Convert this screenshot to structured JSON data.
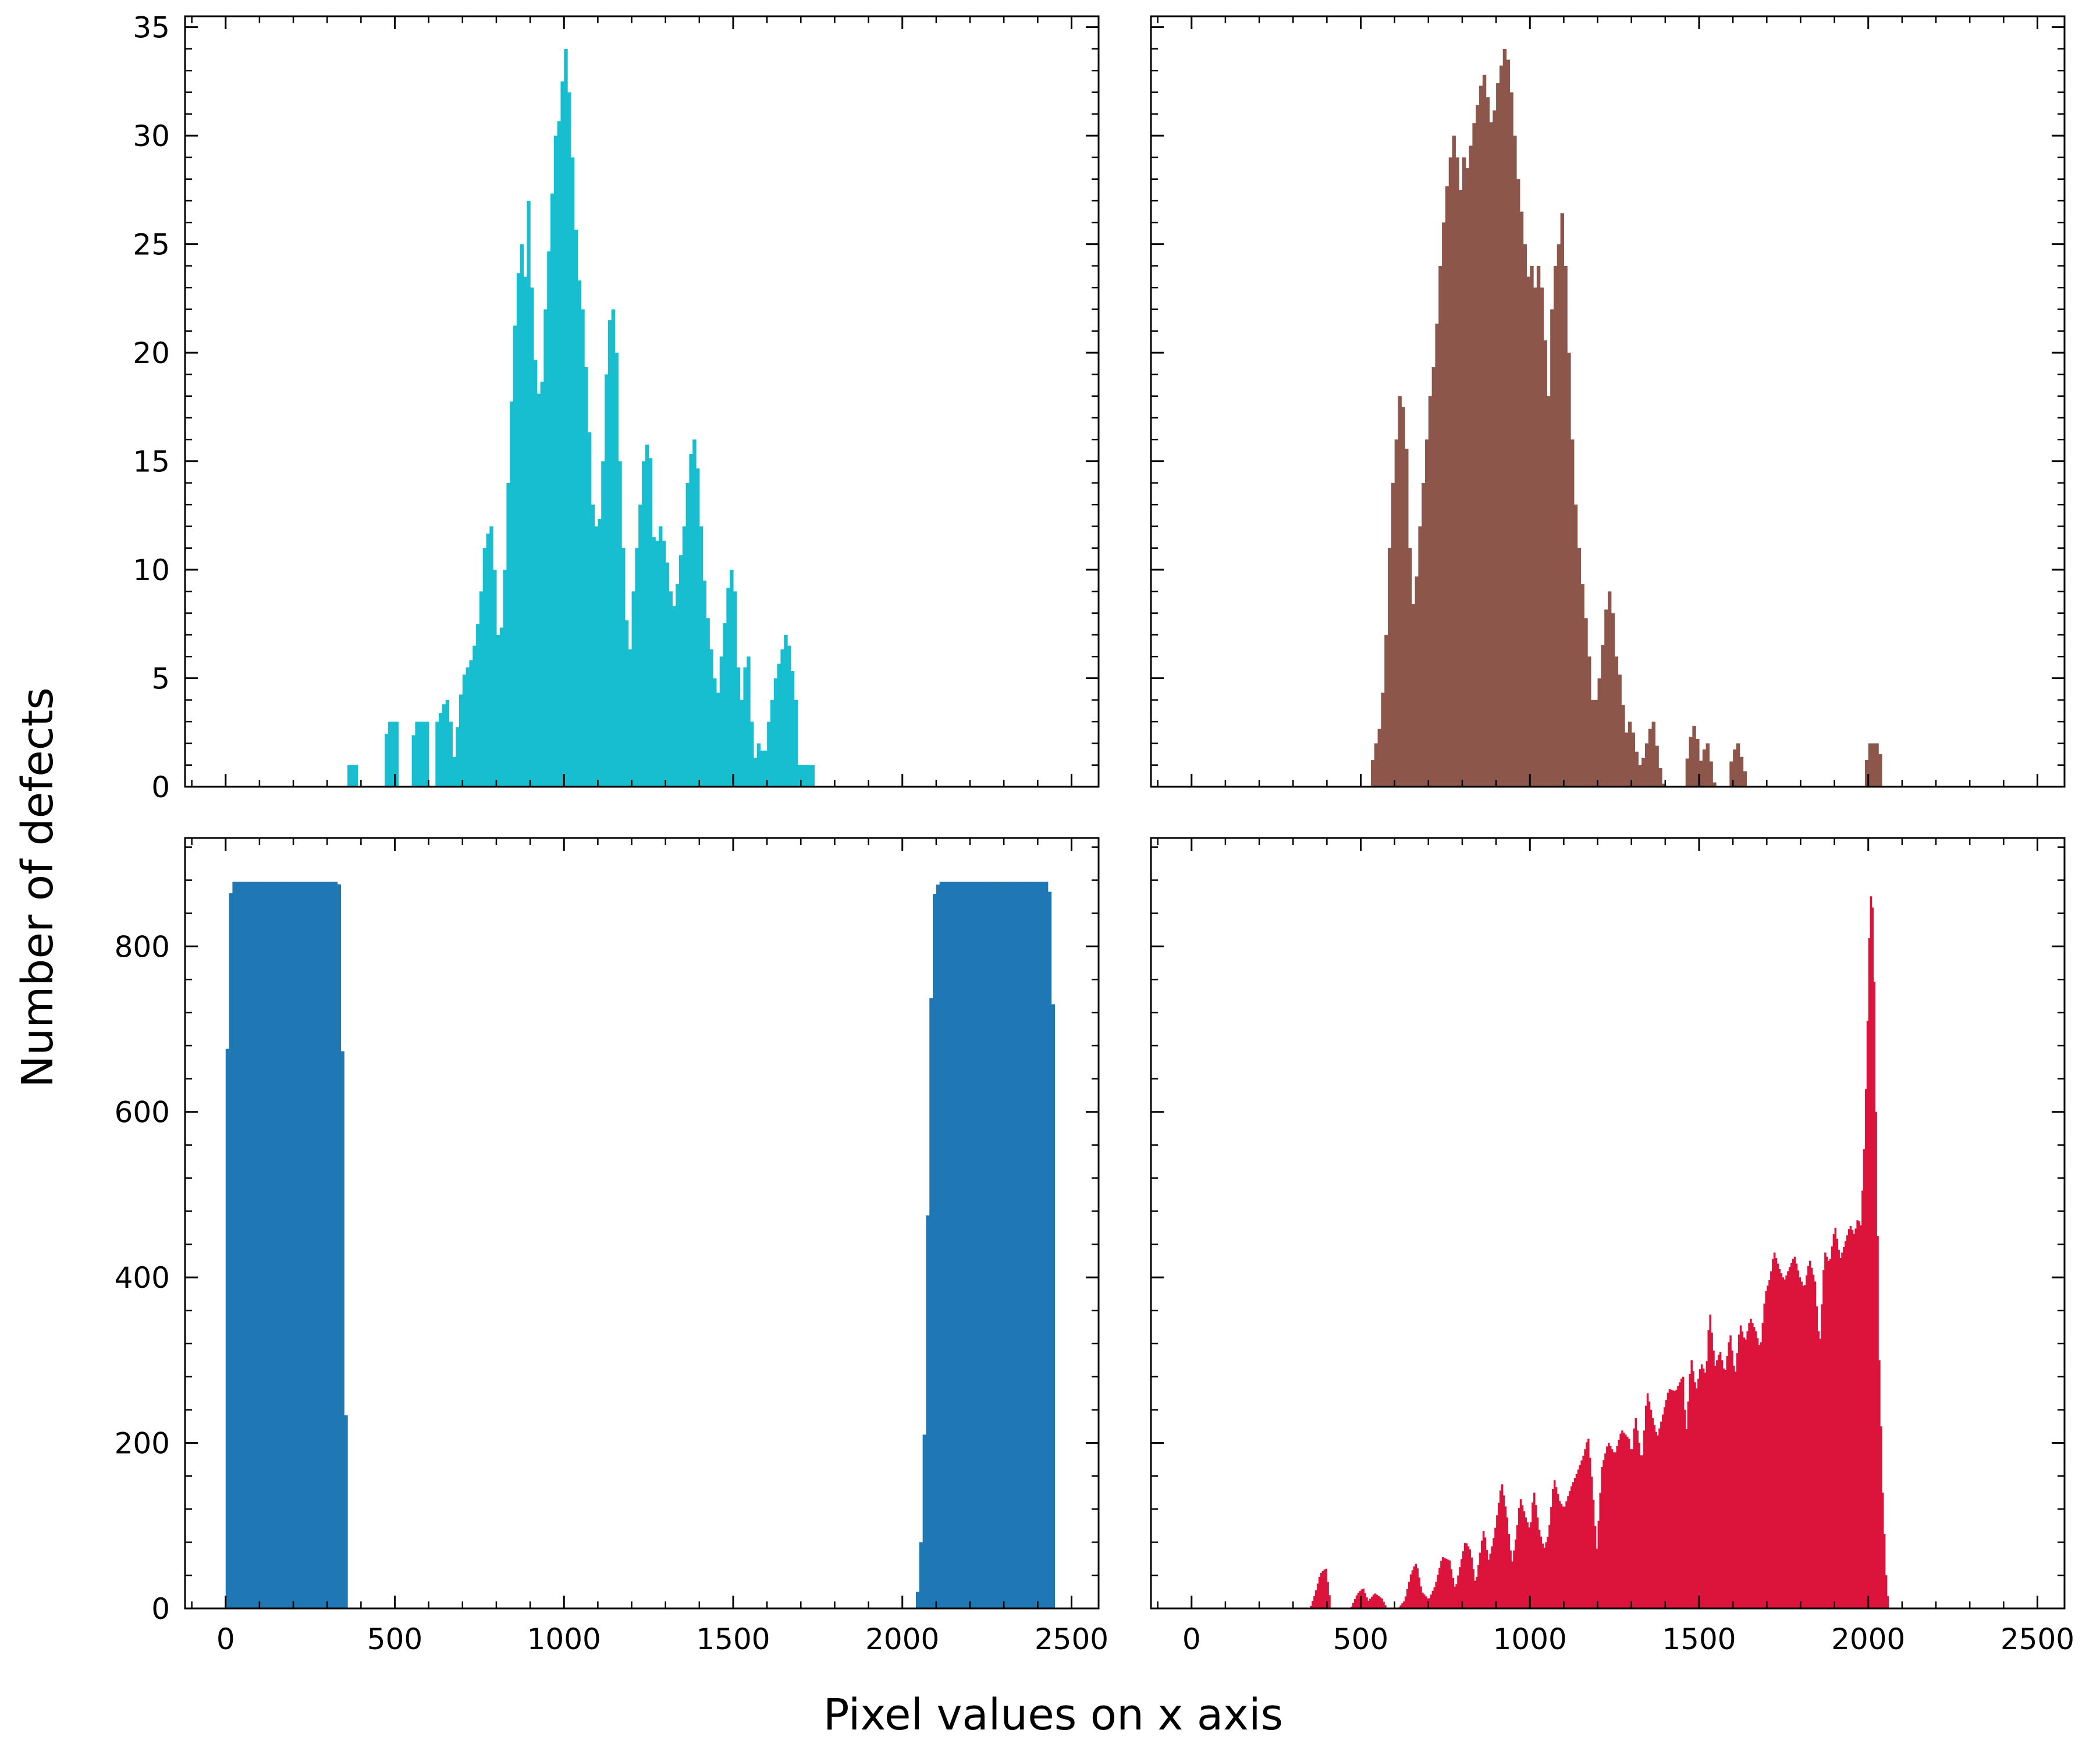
{
  "figure": {
    "xlabel": "Pixel values on x axis",
    "ylabel": "Number of defects",
    "sharex": true,
    "sharey_rows": true,
    "tick_direction": "in",
    "ticks_on_all_sides": true
  },
  "chart_data": [
    {
      "type": "bar",
      "panel": "top-left",
      "color": "#17becf",
      "xlim": [
        -120,
        2580
      ],
      "ylim": [
        0,
        35.5
      ],
      "xticks": [
        0,
        500,
        1000,
        1500,
        2000,
        2500
      ],
      "yticks": [
        0,
        5,
        10,
        15,
        20,
        25,
        30,
        35
      ],
      "show_xticklabels": false,
      "show_yticklabels": true,
      "bin_width": 10,
      "profile": [
        [
          360,
          0
        ],
        [
          361,
          1
        ],
        [
          384,
          1
        ],
        [
          385,
          0
        ],
        [
          470,
          0
        ],
        [
          471,
          2
        ],
        [
          480,
          3
        ],
        [
          500,
          3
        ],
        [
          505,
          2
        ],
        [
          510,
          0
        ],
        [
          550,
          0
        ],
        [
          552,
          2
        ],
        [
          560,
          3
        ],
        [
          590,
          3
        ],
        [
          595,
          0
        ],
        [
          620,
          0
        ],
        [
          625,
          3
        ],
        [
          650,
          4
        ],
        [
          660,
          3
        ],
        [
          672,
          1
        ],
        [
          680,
          2
        ],
        [
          700,
          5
        ],
        [
          730,
          6
        ],
        [
          750,
          8
        ],
        [
          765,
          11
        ],
        [
          780,
          12
        ],
        [
          790,
          10
        ],
        [
          800,
          7
        ],
        [
          810,
          6
        ],
        [
          825,
          10
        ],
        [
          840,
          16
        ],
        [
          860,
          23
        ],
        [
          875,
          25
        ],
        [
          880,
          20
        ],
        [
          890,
          27
        ],
        [
          900,
          23
        ],
        [
          912,
          19
        ],
        [
          930,
          17
        ],
        [
          945,
          22
        ],
        [
          960,
          26
        ],
        [
          975,
          30
        ],
        [
          990,
          31
        ],
        [
          1000,
          34
        ],
        [
          1010,
          32
        ],
        [
          1020,
          29
        ],
        [
          1035,
          24
        ],
        [
          1050,
          22
        ],
        [
          1065,
          18
        ],
        [
          1080,
          13
        ],
        [
          1100,
          11
        ],
        [
          1115,
          15
        ],
        [
          1130,
          21
        ],
        [
          1140,
          22
        ],
        [
          1150,
          20
        ],
        [
          1160,
          15
        ],
        [
          1175,
          9
        ],
        [
          1190,
          5
        ],
        [
          1205,
          9
        ],
        [
          1220,
          12
        ],
        [
          1235,
          15
        ],
        [
          1248,
          16
        ],
        [
          1255,
          13
        ],
        [
          1265,
          10
        ],
        [
          1280,
          12
        ],
        [
          1295,
          11
        ],
        [
          1310,
          9
        ],
        [
          1325,
          8
        ],
        [
          1340,
          10
        ],
        [
          1355,
          12
        ],
        [
          1370,
          15
        ],
        [
          1385,
          16
        ],
        [
          1400,
          12
        ],
        [
          1412,
          9
        ],
        [
          1425,
          7
        ],
        [
          1440,
          5
        ],
        [
          1455,
          4
        ],
        [
          1465,
          6
        ],
        [
          1478,
          8
        ],
        [
          1490,
          10
        ],
        [
          1500,
          9
        ],
        [
          1508,
          6
        ],
        [
          1520,
          3
        ],
        [
          1530,
          5
        ],
        [
          1540,
          6
        ],
        [
          1550,
          3
        ],
        [
          1560,
          1
        ],
        [
          1575,
          2
        ],
        [
          1590,
          1
        ],
        [
          1605,
          3
        ],
        [
          1625,
          5
        ],
        [
          1640,
          6
        ],
        [
          1655,
          7
        ],
        [
          1665,
          6
        ],
        [
          1680,
          4
        ],
        [
          1690,
          1
        ],
        [
          1702,
          1
        ],
        [
          1720,
          1
        ],
        [
          1735,
          1
        ],
        [
          1738,
          0
        ]
      ]
    },
    {
      "type": "bar",
      "panel": "top-right",
      "color": "#8c564b",
      "xlim": [
        -120,
        2580
      ],
      "ylim": [
        0,
        35.5
      ],
      "xticks": [
        0,
        500,
        1000,
        1500,
        2000,
        2500
      ],
      "yticks": [
        0,
        5,
        10,
        15,
        20,
        25,
        30,
        35
      ],
      "show_xticklabels": false,
      "show_yticklabels": false,
      "bin_width": 10,
      "profile": [
        [
          530,
          0
        ],
        [
          532,
          1
        ],
        [
          545,
          2
        ],
        [
          560,
          3
        ],
        [
          575,
          7
        ],
        [
          585,
          11
        ],
        [
          595,
          14
        ],
        [
          605,
          16
        ],
        [
          615,
          18
        ],
        [
          625,
          17
        ],
        [
          632,
          15
        ],
        [
          640,
          11
        ],
        [
          650,
          8
        ],
        [
          662,
          9
        ],
        [
          675,
          12
        ],
        [
          690,
          15
        ],
        [
          705,
          18
        ],
        [
          720,
          20
        ],
        [
          735,
          24
        ],
        [
          750,
          27
        ],
        [
          765,
          29
        ],
        [
          775,
          30
        ],
        [
          785,
          28
        ],
        [
          795,
          27
        ],
        [
          805,
          29
        ],
        [
          815,
          28
        ],
        [
          828,
          30
        ],
        [
          840,
          31
        ],
        [
          852,
          32
        ],
        [
          862,
          33
        ],
        [
          875,
          31
        ],
        [
          888,
          30
        ],
        [
          900,
          32
        ],
        [
          912,
          33
        ],
        [
          925,
          34
        ],
        [
          935,
          33
        ],
        [
          945,
          31
        ],
        [
          955,
          29
        ],
        [
          965,
          27
        ],
        [
          975,
          26
        ],
        [
          985,
          24
        ],
        [
          995,
          23
        ],
        [
          1005,
          24
        ],
        [
          1015,
          22
        ],
        [
          1025,
          24
        ],
        [
          1035,
          22
        ],
        [
          1042,
          20
        ],
        [
          1050,
          18
        ],
        [
          1058,
          17
        ],
        [
          1065,
          22
        ],
        [
          1075,
          24
        ],
        [
          1085,
          25
        ],
        [
          1092,
          27
        ],
        [
          1100,
          24
        ],
        [
          1110,
          20
        ],
        [
          1120,
          16
        ],
        [
          1130,
          13
        ],
        [
          1140,
          11
        ],
        [
          1152,
          9
        ],
        [
          1165,
          7
        ],
        [
          1175,
          5
        ],
        [
          1185,
          3
        ],
        [
          1195,
          4
        ],
        [
          1205,
          5
        ],
        [
          1218,
          7
        ],
        [
          1230,
          9
        ],
        [
          1240,
          8
        ],
        [
          1250,
          6
        ],
        [
          1262,
          5
        ],
        [
          1275,
          3
        ],
        [
          1285,
          2
        ],
        [
          1295,
          3
        ],
        [
          1305,
          2
        ],
        [
          1318,
          1
        ],
        [
          1330,
          1
        ],
        [
          1345,
          2
        ],
        [
          1360,
          3
        ],
        [
          1378,
          1
        ],
        [
          1392,
          0
        ],
        [
          1460,
          0
        ],
        [
          1462,
          1
        ],
        [
          1472,
          2
        ],
        [
          1482,
          3
        ],
        [
          1492,
          2
        ],
        [
          1502,
          1
        ],
        [
          1520,
          2
        ],
        [
          1532,
          1
        ],
        [
          1542,
          0
        ],
        [
          1590,
          0
        ],
        [
          1592,
          1
        ],
        [
          1610,
          2
        ],
        [
          1626,
          1
        ],
        [
          1640,
          0
        ],
        [
          1990,
          0
        ],
        [
          1992,
          1
        ],
        [
          2005,
          2
        ],
        [
          2025,
          2
        ],
        [
          2035,
          1
        ],
        [
          2040,
          0
        ]
      ]
    },
    {
      "type": "bar",
      "panel": "bottom-left",
      "color": "#1f77b4",
      "xlim": [
        -120,
        2580
      ],
      "ylim": [
        0,
        931
      ],
      "xticks": [
        0,
        500,
        1000,
        1500,
        2000,
        2500
      ],
      "yticks": [
        0,
        200,
        400,
        600,
        800
      ],
      "show_xticklabels": true,
      "show_yticklabels": true,
      "bin_width": 10,
      "profile": [
        [
          0,
          0
        ],
        [
          4,
          650
        ],
        [
          12,
          860
        ],
        [
          25,
          878
        ],
        [
          320,
          878
        ],
        [
          330,
          875
        ],
        [
          336,
          820
        ],
        [
          342,
          600
        ],
        [
          348,
          300
        ],
        [
          354,
          100
        ],
        [
          358,
          0
        ],
        [
          2040,
          0
        ],
        [
          2050,
          40
        ],
        [
          2060,
          120
        ],
        [
          2070,
          300
        ],
        [
          2080,
          650
        ],
        [
          2092,
          860
        ],
        [
          2108,
          878
        ],
        [
          2420,
          878
        ],
        [
          2435,
          860
        ],
        [
          2445,
          600
        ],
        [
          2450,
          0
        ]
      ]
    },
    {
      "type": "bar",
      "panel": "bottom-right",
      "color": "#dc143c",
      "xlim": [
        -120,
        2580
      ],
      "ylim": [
        0,
        931
      ],
      "xticks": [
        0,
        500,
        1000,
        1500,
        2000,
        2500
      ],
      "yticks": [
        0,
        200,
        400,
        600,
        800
      ],
      "show_xticklabels": true,
      "show_yticklabels": false,
      "bin_width": 5,
      "profile": [
        [
          350,
          0
        ],
        [
          365,
          18
        ],
        [
          380,
          42
        ],
        [
          395,
          48
        ],
        [
          410,
          0
        ],
        [
          470,
          0
        ],
        [
          490,
          18
        ],
        [
          505,
          24
        ],
        [
          520,
          8
        ],
        [
          540,
          18
        ],
        [
          560,
          12
        ],
        [
          575,
          0
        ],
        [
          610,
          0
        ],
        [
          630,
          10
        ],
        [
          648,
          42
        ],
        [
          662,
          55
        ],
        [
          678,
          20
        ],
        [
          700,
          10
        ],
        [
          720,
          28
        ],
        [
          740,
          62
        ],
        [
          760,
          58
        ],
        [
          778,
          20
        ],
        [
          790,
          45
        ],
        [
          808,
          80
        ],
        [
          822,
          70
        ],
        [
          838,
          25
        ],
        [
          850,
          60
        ],
        [
          862,
          95
        ],
        [
          875,
          55
        ],
        [
          885,
          70
        ],
        [
          895,
          90
        ],
        [
          915,
          150
        ],
        [
          930,
          110
        ],
        [
          945,
          50
        ],
        [
          960,
          90
        ],
        [
          970,
          132
        ],
        [
          985,
          110
        ],
        [
          1000,
          92
        ],
        [
          1010,
          140
        ],
        [
          1025,
          95
        ],
        [
          1040,
          70
        ],
        [
          1055,
          90
        ],
        [
          1070,
          155
        ],
        [
          1085,
          130
        ],
        [
          1100,
          120
        ],
        [
          1120,
          145
        ],
        [
          1140,
          165
        ],
        [
          1158,
          185
        ],
        [
          1170,
          205
        ],
        [
          1182,
          150
        ],
        [
          1196,
          62
        ],
        [
          1212,
          170
        ],
        [
          1230,
          200
        ],
        [
          1250,
          185
        ],
        [
          1270,
          215
        ],
        [
          1290,
          205
        ],
        [
          1300,
          180
        ],
        [
          1310,
          230
        ],
        [
          1330,
          170
        ],
        [
          1345,
          260
        ],
        [
          1360,
          230
        ],
        [
          1375,
          205
        ],
        [
          1390,
          230
        ],
        [
          1410,
          265
        ],
        [
          1430,
          262
        ],
        [
          1450,
          280
        ],
        [
          1460,
          200
        ],
        [
          1475,
          300
        ],
        [
          1490,
          260
        ],
        [
          1505,
          295
        ],
        [
          1520,
          280
        ],
        [
          1530,
          355
        ],
        [
          1545,
          290
        ],
        [
          1560,
          310
        ],
        [
          1575,
          280
        ],
        [
          1590,
          330
        ],
        [
          1605,
          275
        ],
        [
          1620,
          342
        ],
        [
          1635,
          320
        ],
        [
          1650,
          350
        ],
        [
          1665,
          335
        ],
        [
          1680,
          310
        ],
        [
          1695,
          380
        ],
        [
          1710,
          400
        ],
        [
          1720,
          430
        ],
        [
          1735,
          410
        ],
        [
          1750,
          395
        ],
        [
          1765,
          410
        ],
        [
          1780,
          425
        ],
        [
          1795,
          400
        ],
        [
          1810,
          385
        ],
        [
          1825,
          420
        ],
        [
          1840,
          395
        ],
        [
          1855,
          305
        ],
        [
          1870,
          430
        ],
        [
          1885,
          415
        ],
        [
          1900,
          460
        ],
        [
          1915,
          420
        ],
        [
          1930,
          440
        ],
        [
          1945,
          462
        ],
        [
          1958,
          450
        ],
        [
          1968,
          470
        ],
        [
          1978,
          460
        ],
        [
          1988,
          560
        ],
        [
          1996,
          680
        ],
        [
          2003,
          820
        ],
        [
          2008,
          865
        ],
        [
          2013,
          820
        ],
        [
          2020,
          600
        ],
        [
          2030,
          300
        ],
        [
          2040,
          140
        ],
        [
          2050,
          40
        ],
        [
          2058,
          0
        ]
      ]
    }
  ]
}
